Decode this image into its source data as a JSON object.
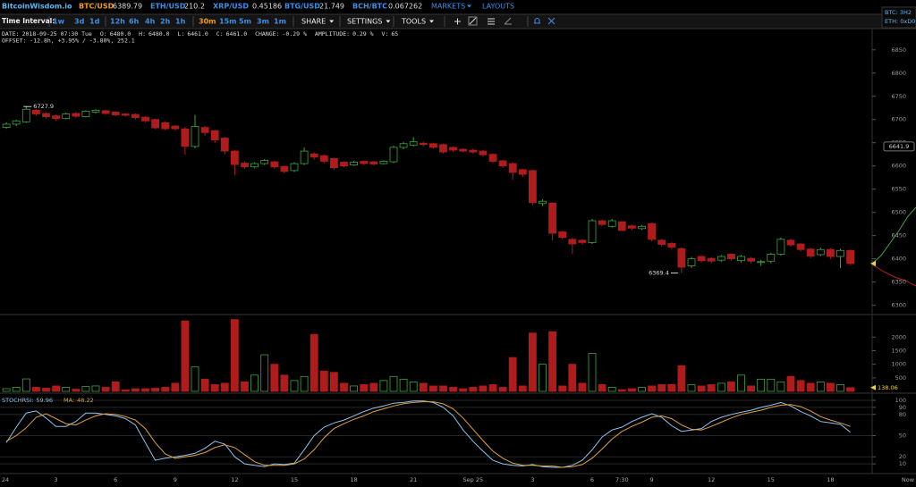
{
  "header": {
    "logo": "BitcoinWisdom.io",
    "tickers": [
      {
        "pair": "BTC/USD",
        "price": 6389.79,
        "color": "#f39c12"
      },
      {
        "pair": "ETH/USD",
        "price": 210.2,
        "color": "#3b8fe6"
      },
      {
        "pair": "XRP/USD",
        "price": 0.45186,
        "color": "#3b8fe6"
      },
      {
        "pair": "BTG/USD",
        "price": 21.749,
        "color": "#3b8fe6"
      },
      {
        "pair": "BCH/BTC",
        "price": 0.067262,
        "color": "#3b8fe6"
      }
    ],
    "menus": [
      "MARKETS",
      "LAYOUTS"
    ],
    "wallets": [
      "BTC: 3H2",
      "ETH: 0xD0"
    ]
  },
  "toolbar": {
    "label": "Time Interval:",
    "intervals": [
      {
        "label": "1w"
      },
      {
        "label": "3d"
      },
      {
        "label": "1d"
      },
      {
        "label": "12h"
      },
      {
        "label": "6h"
      },
      {
        "label": "4h"
      },
      {
        "label": "2h"
      },
      {
        "label": "1h"
      },
      {
        "label": "30m",
        "active": true
      },
      {
        "label": "15m"
      },
      {
        "label": "5m"
      },
      {
        "label": "3m"
      },
      {
        "label": "1m"
      }
    ],
    "menus": [
      "SHARE",
      "SETTINGS",
      "TOOLS"
    ]
  },
  "info": {
    "fields": [
      {
        "label": "DATE:",
        "value": "2018-09-25 07:30 Tue"
      },
      {
        "label": "O:",
        "value": "6480.0"
      },
      {
        "label": "H:",
        "value": "6480.0"
      },
      {
        "label": "L:",
        "value": "6461.0"
      },
      {
        "label": "C:",
        "value": "6461.0"
      },
      {
        "label": "CHANGE:",
        "value": "-0.29 %"
      },
      {
        "label": "AMPLITUDE:",
        "value": "0.29 %"
      },
      {
        "label": "V:",
        "value": "65"
      }
    ],
    "offset": "OFFSET: -12.8h, +3.95% / -3.80%, 252.1"
  },
  "chart_data": [
    {
      "type": "candlestick",
      "up_color": "#3ea53e",
      "down_color": "#b01c1c",
      "ylim": [
        6280,
        6890
      ],
      "yticks": [
        6300,
        6350,
        6400,
        6450,
        6500,
        6550,
        6600,
        6650,
        6700,
        6750,
        6800,
        6850
      ],
      "crosshair_price": 6641.9,
      "open": [
        null,
        6683,
        6690,
        6695,
        6720,
        6713,
        6708,
        6702,
        6713,
        6706,
        6716,
        6719,
        6716,
        6712,
        6711,
        6705,
        6700,
        6693,
        6686,
        6680,
        6642,
        6683,
        6676,
        6660,
        6632,
        6606,
        6598,
        6605,
        6609,
        6599,
        6590,
        6605,
        6626,
        6622,
        6616,
        6608,
        6602,
        6610,
        6609,
        6605,
        6609,
        6640,
        6645,
        6649,
        6648,
        6646,
        6640,
        6636,
        6634,
        6632,
        6625,
        6611,
        6605,
        6592,
        6590,
        6519,
        6520,
        6458,
        6442,
        6440,
        6435,
        6482,
        6470,
        6480,
        6471,
        6465,
        6476,
        6440,
        6433,
        6422,
        6385,
        6405,
        6401,
        6397,
        6410,
        6396,
        6401,
        6392,
        6395,
        6410,
        6440,
        6432,
        6421,
        6409,
        6420,
        6405,
        6418
      ],
      "high": [
        null,
        6694,
        6700,
        6727.9,
        6722,
        6715,
        6710,
        6715,
        6716,
        6720,
        6722,
        6721,
        6718,
        6714,
        6713,
        6707,
        6702,
        6696,
        6688,
        6684,
        6710,
        6686,
        6678,
        6663,
        6635,
        6610,
        6608,
        6615,
        6611,
        6601,
        6608,
        6640,
        6629,
        6625,
        6618,
        6610,
        6611,
        6612,
        6611,
        6612,
        6644,
        6652,
        6662,
        6652,
        6650,
        6648,
        6642,
        6638,
        6637,
        6634,
        6627,
        6613,
        6608,
        6594,
        6592,
        6528,
        6522,
        6460,
        6446,
        6443,
        6486,
        6485,
        6486,
        6480,
        6474,
        6473,
        6478,
        6443,
        6436,
        6425,
        6404,
        6408,
        6404,
        6408,
        6412,
        6408,
        6404,
        6398,
        6413,
        6446,
        6443,
        6434,
        6424,
        6424,
        6423,
        6422,
        6420
      ],
      "low": [
        null,
        6680,
        6686,
        6693,
        6708,
        6702,
        6698,
        6700,
        6704,
        6704,
        6713,
        6710,
        6707,
        6706,
        6700,
        6694,
        6679,
        6677,
        6676,
        6624,
        6638,
        6665,
        6650,
        6625,
        6580,
        6594,
        6595,
        6602,
        6594,
        6584,
        6587,
        6602,
        6614,
        6606,
        6592,
        6597,
        6600,
        6602,
        6601,
        6603,
        6606,
        6636,
        6642,
        6642,
        6637,
        6627,
        6630,
        6629,
        6626,
        6620,
        6606,
        6596,
        6570,
        6576,
        6515,
        6514,
        6440,
        6442,
        6410,
        6430,
        6432,
        6470,
        6467,
        6461,
        6462,
        6462,
        6438,
        6426,
        6420,
        6369.4,
        6380,
        6392,
        6390,
        6394,
        6396,
        6392,
        6390,
        6385,
        6390,
        6407,
        6426,
        6416,
        6402,
        6406,
        6400,
        6380,
        6386
      ],
      "close": [
        null,
        6690,
        6697,
        6722,
        6712,
        6706,
        6702,
        6712,
        6707,
        6718,
        6720,
        6713,
        6710,
        6709,
        6704,
        6697,
        6682,
        6680,
        6680,
        6642,
        6685,
        6672,
        6656,
        6632,
        6603,
        6598,
        6605,
        6612,
        6598,
        6588,
        6605,
        6632,
        6619,
        6610,
        6596,
        6600,
        6608,
        6605,
        6604,
        6610,
        6640,
        6648,
        6652,
        6646,
        6640,
        6630,
        6634,
        6632,
        6630,
        6624,
        6610,
        6600,
        6586,
        6582,
        6521,
        6524,
        6455,
        6446,
        6432,
        6435,
        6482,
        6474,
        6482,
        6461,
        6466,
        6470,
        6442,
        6431,
        6425,
        6382,
        6400,
        6396,
        6395,
        6405,
        6400,
        6405,
        6395,
        6394,
        6410,
        6442,
        6430,
        6420,
        6406,
        6420,
        6405,
        6418,
        6390
      ]
    },
    {
      "type": "bar",
      "up_color": "#3ea53e",
      "down_color": "#b01c1c",
      "ylim": [
        0,
        2800
      ],
      "yticks": [
        500,
        1000,
        1500,
        2000
      ],
      "values": [
        null,
        100,
        150,
        460,
        150,
        120,
        200,
        150,
        80,
        180,
        200,
        150,
        350,
        60,
        100,
        100,
        120,
        150,
        300,
        2600,
        900,
        450,
        250,
        300,
        2650,
        350,
        600,
        1350,
        1000,
        600,
        400,
        550,
        2100,
        750,
        700,
        300,
        200,
        250,
        300,
        400,
        550,
        450,
        350,
        300,
        200,
        200,
        150,
        100,
        150,
        200,
        250,
        150,
        1250,
        200,
        2150,
        1000,
        2200,
        200,
        1000,
        300,
        1400,
        250,
        150,
        65,
        100,
        150,
        200,
        250,
        250,
        950,
        250,
        200,
        250,
        300,
        350,
        600,
        200,
        450,
        450,
        350,
        550,
        400,
        300,
        350,
        300,
        250,
        138.06
      ]
    },
    {
      "type": "line",
      "ylim": [
        0,
        100
      ],
      "yticks": [
        10,
        20,
        50,
        80,
        90,
        100
      ],
      "grid": true,
      "x_end_label": "Now",
      "categories": [
        "24",
        null,
        null,
        null,
        null,
        null,
        "3",
        null,
        null,
        null,
        null,
        null,
        "6",
        null,
        null,
        null,
        null,
        null,
        "9",
        null,
        null,
        null,
        null,
        null,
        "12",
        null,
        null,
        null,
        null,
        null,
        "15",
        null,
        null,
        null,
        null,
        null,
        "18",
        null,
        null,
        null,
        null,
        null,
        "21",
        null,
        null,
        null,
        null,
        null,
        "Sep 25",
        null,
        null,
        null,
        null,
        null,
        "3",
        null,
        null,
        null,
        null,
        null,
        "6",
        null,
        null,
        "7:30",
        null,
        null,
        "9",
        null,
        null,
        null,
        null,
        null,
        "12",
        null,
        null,
        null,
        null,
        null,
        "15",
        null,
        null,
        null,
        null,
        null,
        "18",
        null,
        null
      ],
      "series": [
        {
          "name": "STOCHRSI:",
          "readout": 59.96,
          "color": "#8fc3ee",
          "values": [
            null,
            40,
            62,
            82,
            85,
            75,
            63,
            63,
            70,
            82,
            82,
            80,
            78,
            74,
            65,
            40,
            15,
            18,
            20,
            22,
            25,
            32,
            42,
            38,
            20,
            10,
            8,
            6,
            10,
            9,
            11,
            30,
            50,
            62,
            68,
            72,
            78,
            84,
            89,
            92,
            96,
            97,
            99,
            99,
            97,
            90,
            78,
            58,
            42,
            28,
            15,
            10,
            8,
            7,
            9,
            6,
            5,
            5,
            8,
            15,
            30,
            48,
            58,
            62,
            70,
            76,
            81,
            76,
            64,
            56,
            58,
            60,
            70,
            76,
            80,
            83,
            86,
            90,
            93,
            97,
            92,
            84,
            78,
            70,
            68,
            66,
            55
          ]
        },
        {
          "name": "MA:",
          "readout": 48.22,
          "color": "#e0a040",
          "values": [
            null,
            42,
            50,
            61,
            76,
            81,
            74,
            67,
            65,
            72,
            78,
            81,
            80,
            77,
            72,
            60,
            40,
            24,
            18,
            20,
            22,
            26,
            33,
            37,
            33,
            23,
            13,
            8,
            8,
            8,
            10,
            17,
            30,
            47,
            60,
            67,
            73,
            78,
            84,
            88,
            92,
            95,
            97,
            98,
            98,
            95,
            88,
            75,
            59,
            43,
            28,
            18,
            11,
            8,
            8,
            7,
            7,
            5,
            6,
            9,
            18,
            31,
            45,
            56,
            63,
            69,
            76,
            78,
            74,
            65,
            59,
            58,
            63,
            69,
            75,
            80,
            83,
            86,
            90,
            93,
            94,
            91,
            85,
            77,
            72,
            68,
            63
          ]
        }
      ]
    }
  ]
}
